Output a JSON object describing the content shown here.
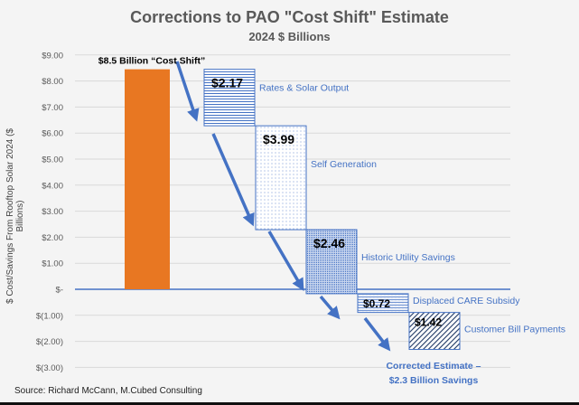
{
  "chart_data": {
    "type": "waterfall",
    "title": "Corrections to PAO \"Cost Shift\" Estimate",
    "subtitle": "2024 $ Billions",
    "ylabel": "$ Cost/Savings From Rooftop Solar 2024 ($ Billions)",
    "ylim": [
      -3,
      9
    ],
    "yticks": [
      9,
      8,
      7,
      6,
      5,
      4,
      3,
      2,
      1,
      0,
      -1,
      -2,
      -3
    ],
    "ytick_labels": [
      "$9.00",
      "$8.00",
      "$7.00",
      "$6.00",
      "$5.00",
      "$4.00",
      "$3.00",
      "$2.00",
      "$1.00",
      "$-",
      "$(1.00)",
      "$(2.00)",
      "$(3.00)"
    ],
    "grid": true,
    "start": {
      "label": "$8.5 Billion “Cost Shift”",
      "value": 8.45,
      "color": "#e87722"
    },
    "steps": [
      {
        "name": "Rates & Solar Output",
        "value": -2.17,
        "data_label": "$2.17",
        "pattern": "horizontal-lines"
      },
      {
        "name": "Self Generation",
        "value": -3.99,
        "data_label": "$3.99",
        "pattern": "light-dots"
      },
      {
        "name": "Historic Utility Savings",
        "value": -2.46,
        "data_label": "$2.46",
        "pattern": "dense-dots"
      },
      {
        "name": "Displaced CARE Subsidy",
        "value": -0.72,
        "data_label": "$0.72",
        "pattern": "wavy-lines"
      },
      {
        "name": "Customer Bill Payments",
        "value": -1.42,
        "data_label": "$1.42",
        "pattern": "diagonal-lines"
      }
    ],
    "result_annotation": [
      "Corrected Estimate –",
      "$2.3 Billion Savings"
    ],
    "accent_color": "#4472c4"
  },
  "source": "Source: Richard McCann, M.Cubed Consulting"
}
